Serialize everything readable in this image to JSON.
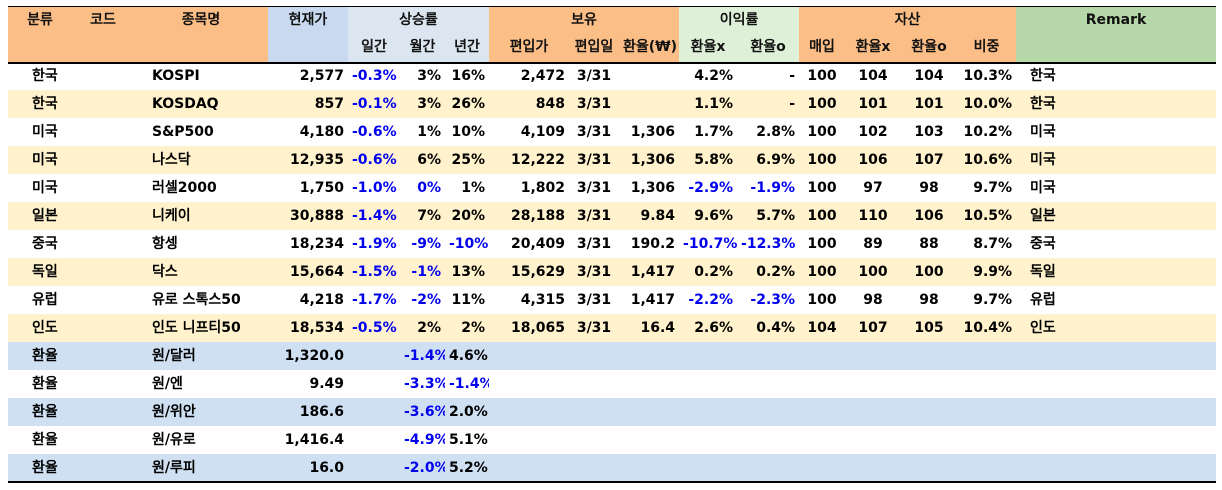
{
  "header": {
    "group_labels": {
      "category": "분류",
      "code": "코드",
      "name": "종목명",
      "price": "현재가",
      "change": "상승률",
      "holding": "보유",
      "return": "이익률",
      "asset": "자산",
      "remark": "Remark"
    },
    "sub_labels": {
      "day": "일간",
      "month": "월간",
      "year": "년간",
      "buy_price": "편입가",
      "buy_date": "편입일",
      "fx_rate": "환율(₩)",
      "ret_x": "환율x",
      "ret_o": "환율o",
      "purchase": "매입",
      "asset_x": "환율x",
      "asset_o": "환율o",
      "weight": "비중"
    }
  },
  "rows": [
    {
      "category": "한국",
      "code": "",
      "name": "KOSPI",
      "price": "2,577",
      "day": "-0.3%",
      "month": "3%",
      "year": "16%",
      "buy_price": "2,472",
      "buy_date": "3/31",
      "fx": "",
      "ret_x": "4.2%",
      "ret_o": "-",
      "purchase": "100",
      "asset_x": "104",
      "asset_o": "104",
      "weight": "10.3%",
      "remark": "한국"
    },
    {
      "category": "한국",
      "code": "",
      "name": "KOSDAQ",
      "price": "857",
      "day": "-0.1%",
      "month": "3%",
      "year": "26%",
      "buy_price": "848",
      "buy_date": "3/31",
      "fx": "",
      "ret_x": "1.1%",
      "ret_o": "-",
      "purchase": "100",
      "asset_x": "101",
      "asset_o": "101",
      "weight": "10.0%",
      "remark": "한국"
    },
    {
      "category": "미국",
      "code": "",
      "name": "S&P500",
      "price": "4,180",
      "day": "-0.6%",
      "month": "1%",
      "year": "10%",
      "buy_price": "4,109",
      "buy_date": "3/31",
      "fx": "1,306",
      "ret_x": "1.7%",
      "ret_o": "2.8%",
      "purchase": "100",
      "asset_x": "102",
      "asset_o": "103",
      "weight": "10.2%",
      "remark": "미국"
    },
    {
      "category": "미국",
      "code": "",
      "name": "나스닥",
      "price": "12,935",
      "day": "-0.6%",
      "month": "6%",
      "year": "25%",
      "buy_price": "12,222",
      "buy_date": "3/31",
      "fx": "1,306",
      "ret_x": "5.8%",
      "ret_o": "6.9%",
      "purchase": "100",
      "asset_x": "106",
      "asset_o": "107",
      "weight": "10.6%",
      "remark": "미국"
    },
    {
      "category": "미국",
      "code": "",
      "name": "러셀2000",
      "price": "1,750",
      "day": "-1.0%",
      "month": "0%",
      "year": "1%",
      "buy_price": "1,802",
      "buy_date": "3/31",
      "fx": "1,306",
      "ret_x": "-2.9%",
      "ret_o": "-1.9%",
      "purchase": "100",
      "asset_x": "97",
      "asset_o": "98",
      "weight": "9.7%",
      "remark": "미국"
    },
    {
      "category": "일본",
      "code": "",
      "name": "니케이",
      "price": "30,888",
      "day": "-1.4%",
      "month": "7%",
      "year": "20%",
      "buy_price": "28,188",
      "buy_date": "3/31",
      "fx": "9.84",
      "ret_x": "9.6%",
      "ret_o": "5.7%",
      "purchase": "100",
      "asset_x": "110",
      "asset_o": "106",
      "weight": "10.5%",
      "remark": "일본"
    },
    {
      "category": "중국",
      "code": "",
      "name": "항셍",
      "price": "18,234",
      "day": "-1.9%",
      "month": "-9%",
      "year": "-10%",
      "buy_price": "20,409",
      "buy_date": "3/31",
      "fx": "190.2",
      "ret_x": "-10.7%",
      "ret_o": "-12.3%",
      "purchase": "100",
      "asset_x": "89",
      "asset_o": "88",
      "weight": "8.7%",
      "remark": "중국"
    },
    {
      "category": "독일",
      "code": "",
      "name": "닥스",
      "price": "15,664",
      "day": "-1.5%",
      "month": "-1%",
      "year": "13%",
      "buy_price": "15,629",
      "buy_date": "3/31",
      "fx": "1,417",
      "ret_x": "0.2%",
      "ret_o": "0.2%",
      "purchase": "100",
      "asset_x": "100",
      "asset_o": "100",
      "weight": "9.9%",
      "remark": "독일"
    },
    {
      "category": "유럽",
      "code": "",
      "name": "유로 스톡스50",
      "price": "4,218",
      "day": "-1.7%",
      "month": "-2%",
      "year": "11%",
      "buy_price": "4,315",
      "buy_date": "3/31",
      "fx": "1,417",
      "ret_x": "-2.2%",
      "ret_o": "-2.3%",
      "purchase": "100",
      "asset_x": "98",
      "asset_o": "98",
      "weight": "9.7%",
      "remark": "유럽"
    },
    {
      "category": "인도",
      "code": "",
      "name": "인도 니프티50",
      "price": "18,534",
      "day": "-0.5%",
      "month": "2%",
      "year": "2%",
      "buy_price": "18,065",
      "buy_date": "3/31",
      "fx": "16.4",
      "ret_x": "2.6%",
      "ret_o": "0.4%",
      "purchase": "104",
      "asset_x": "107",
      "asset_o": "105",
      "weight": "10.4%",
      "remark": "인도"
    }
  ],
  "fx_rows": [
    {
      "category": "환율",
      "name": "원/달러",
      "price": "1,320.0",
      "month": "-1.4%",
      "year": "4.6%"
    },
    {
      "category": "환율",
      "name": "원/엔",
      "price": "9.49",
      "month": "-3.3%",
      "year": "-1.4%"
    },
    {
      "category": "환율",
      "name": "원/위안",
      "price": "186.6",
      "month": "-3.6%",
      "year": "2.0%"
    },
    {
      "category": "환율",
      "name": "원/유로",
      "price": "1,416.4",
      "month": "-4.9%",
      "year": "5.1%"
    },
    {
      "category": "환율",
      "name": "원/루피",
      "price": "16.0",
      "month": "-2.0%",
      "year": "5.2%"
    }
  ],
  "colors": {
    "header_orange": "#fbbe86",
    "header_blue": "#c9daf0",
    "header_green": "#b6d7a8",
    "header_light_green": "#dff0d8",
    "row_band_yellow": "#fff2cc",
    "row_band_blue": "#cfe0f2",
    "negative_text": "#0000ee"
  }
}
